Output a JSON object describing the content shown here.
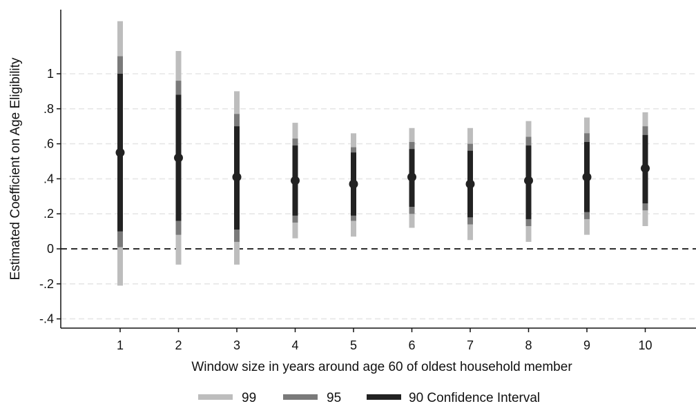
{
  "chart_data": {
    "type": "errorbar",
    "xlabel": "Window size in years around age 60 of oldest household member",
    "ylabel": "Estimated Coefficient on Age Eligibility",
    "x_ticks": [
      1,
      2,
      3,
      4,
      5,
      6,
      7,
      8,
      9,
      10
    ],
    "y_ticks": [
      -0.4,
      -0.2,
      0,
      0.2,
      0.4,
      0.6,
      0.8,
      1
    ],
    "y_tick_labels": [
      "-.4",
      "-.2",
      "0",
      ".2",
      ".4",
      ".6",
      ".8",
      "1"
    ],
    "xlim": [
      0,
      11
    ],
    "ylim": [
      -0.45,
      1.3
    ],
    "reference_line": {
      "y": 0,
      "style": "dashed"
    },
    "grid": true,
    "legend_position": "bottom",
    "colors": {
      "ci99": "#bdbdbd",
      "ci95": "#7a7a7a",
      "ci90": "#222222",
      "point": "#222222"
    },
    "points": [
      {
        "x": 1,
        "estimate": 0.55,
        "ci90": [
          0.1,
          1.0
        ],
        "ci95": [
          0.01,
          1.1
        ],
        "ci99": [
          -0.21,
          1.3
        ]
      },
      {
        "x": 2,
        "estimate": 0.52,
        "ci90": [
          0.16,
          0.88
        ],
        "ci95": [
          0.08,
          0.96
        ],
        "ci99": [
          -0.09,
          1.13
        ]
      },
      {
        "x": 3,
        "estimate": 0.41,
        "ci90": [
          0.11,
          0.7
        ],
        "ci95": [
          0.04,
          0.77
        ],
        "ci99": [
          -0.09,
          0.9
        ]
      },
      {
        "x": 4,
        "estimate": 0.39,
        "ci90": [
          0.19,
          0.59
        ],
        "ci95": [
          0.15,
          0.63
        ],
        "ci99": [
          0.06,
          0.72
        ]
      },
      {
        "x": 5,
        "estimate": 0.37,
        "ci90": [
          0.19,
          0.55
        ],
        "ci95": [
          0.16,
          0.58
        ],
        "ci99": [
          0.07,
          0.66
        ]
      },
      {
        "x": 6,
        "estimate": 0.41,
        "ci90": [
          0.24,
          0.57
        ],
        "ci95": [
          0.2,
          0.61
        ],
        "ci99": [
          0.12,
          0.69
        ]
      },
      {
        "x": 7,
        "estimate": 0.37,
        "ci90": [
          0.18,
          0.56
        ],
        "ci95": [
          0.14,
          0.6
        ],
        "ci99": [
          0.05,
          0.69
        ]
      },
      {
        "x": 8,
        "estimate": 0.39,
        "ci90": [
          0.17,
          0.59
        ],
        "ci95": [
          0.13,
          0.64
        ],
        "ci99": [
          0.04,
          0.73
        ]
      },
      {
        "x": 9,
        "estimate": 0.41,
        "ci90": [
          0.21,
          0.61
        ],
        "ci95": [
          0.17,
          0.66
        ],
        "ci99": [
          0.08,
          0.75
        ]
      },
      {
        "x": 10,
        "estimate": 0.46,
        "ci90": [
          0.26,
          0.65
        ],
        "ci95": [
          0.22,
          0.7
        ],
        "ci99": [
          0.13,
          0.78
        ]
      }
    ],
    "legend": [
      {
        "key": "ci99",
        "label": "99"
      },
      {
        "key": "ci95",
        "label": "95"
      },
      {
        "key": "ci90",
        "label": "90 Confidence Interval"
      }
    ]
  }
}
